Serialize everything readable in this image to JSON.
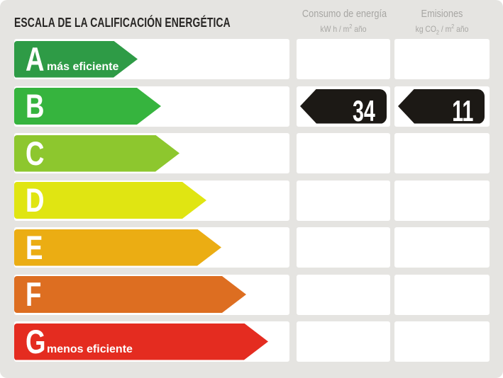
{
  "header": {
    "title": "ESCALA DE LA CALIFICACIÓN ENERGÉTICA",
    "columns": {
      "consumo": {
        "label": "Consumo de energía",
        "unit_prefix": "kW h / m",
        "unit_sup": "2",
        "unit_suffix": " año"
      },
      "emisiones": {
        "label": "Emisiones",
        "unit_prefix": "kg CO",
        "unit_sub": "2",
        "unit_mid": " / m",
        "unit_sup": "2",
        "unit_suffix": " año"
      }
    }
  },
  "scale": {
    "value_arrow_color": "#1c1915",
    "rows": [
      {
        "letter": "A",
        "note": "más eficiente",
        "color": "#2e9b46",
        "arrow_width": 174,
        "consumo": null,
        "emisiones": null
      },
      {
        "letter": "B",
        "note": null,
        "color": "#36b43e",
        "arrow_width": 207,
        "consumo": "34",
        "emisiones": "11"
      },
      {
        "letter": "C",
        "note": null,
        "color": "#8dc72e",
        "arrow_width": 233,
        "consumo": null,
        "emisiones": null
      },
      {
        "letter": "D",
        "note": null,
        "color": "#e0e512",
        "arrow_width": 271,
        "consumo": null,
        "emisiones": null
      },
      {
        "letter": "E",
        "note": null,
        "color": "#ebad13",
        "arrow_width": 292,
        "consumo": null,
        "emisiones": null
      },
      {
        "letter": "F",
        "note": null,
        "color": "#dd6e21",
        "arrow_width": 327,
        "consumo": null,
        "emisiones": null
      },
      {
        "letter": "G",
        "note": "menos eficiente",
        "color": "#e42c20",
        "arrow_width": 358,
        "consumo": null,
        "emisiones": null
      }
    ]
  },
  "chart_data": {
    "type": "bar",
    "title": "ESCALA DE LA CALIFICACIÓN ENERGÉTICA",
    "orientation": "horizontal",
    "categories": [
      "A",
      "B",
      "C",
      "D",
      "E",
      "F",
      "G"
    ],
    "values": [
      174,
      207,
      233,
      271,
      292,
      327,
      358
    ],
    "category_colors": [
      "#2e9b46",
      "#36b43e",
      "#8dc72e",
      "#e0e512",
      "#ebad13",
      "#dd6e21",
      "#e42c20"
    ],
    "annotations": {
      "A": "más eficiente",
      "G": "menos eficiente"
    },
    "assigned_rating": "B",
    "consumo_de_energia": {
      "value": 34,
      "unit": "kW h / m2 año"
    },
    "emisiones": {
      "value": 11,
      "unit": "kg CO2 / m2 año"
    }
  }
}
